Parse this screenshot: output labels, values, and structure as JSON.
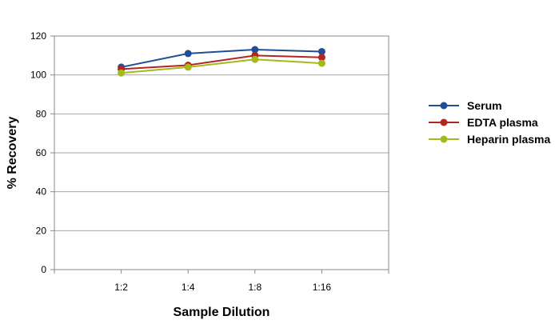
{
  "chart_data": {
    "type": "line",
    "title": "",
    "xlabel": "Sample Dilution",
    "ylabel": "% Recovery",
    "categories": [
      "1:2",
      "1:4",
      "1:8",
      "1:16"
    ],
    "ylim": [
      0,
      120
    ],
    "yticks": [
      0,
      20,
      40,
      60,
      80,
      100,
      120
    ],
    "grid": true,
    "legend": "right",
    "series": [
      {
        "name": "Serum",
        "color": "#1f4e96",
        "values": [
          104,
          111,
          113,
          112
        ]
      },
      {
        "name": "EDTA plasma",
        "color": "#b3261e",
        "values": [
          103,
          105,
          110,
          109
        ]
      },
      {
        "name": "Heparin plasma",
        "color": "#a5b81e",
        "values": [
          101,
          104,
          108,
          106
        ]
      }
    ]
  }
}
